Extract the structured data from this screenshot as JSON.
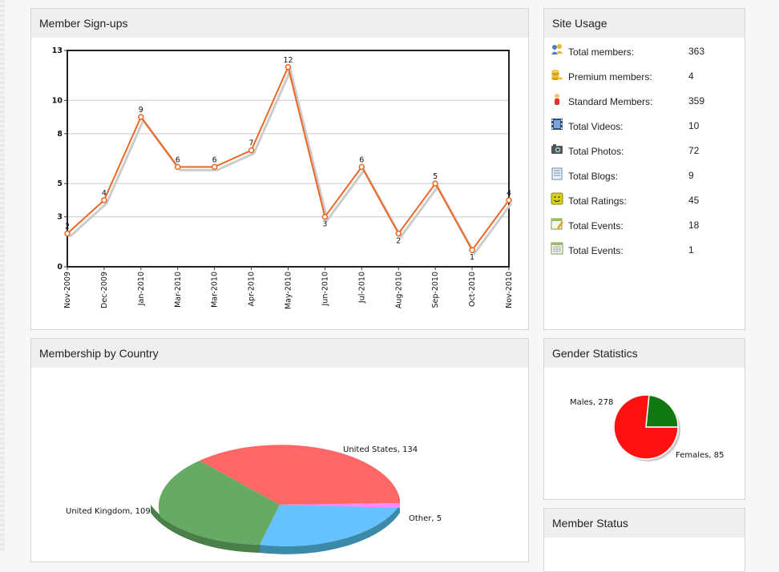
{
  "panels": {
    "signups_title": "Member Sign-ups",
    "usage_title": "Site Usage",
    "country_title": "Membership by Country",
    "gender_title": "Gender Statistics",
    "status_title": "Member Status"
  },
  "site_usage": [
    {
      "label": "Total members:",
      "value": "363",
      "icon": "members-icon"
    },
    {
      "label": "Premium members:",
      "value": "4",
      "icon": "coins-icon"
    },
    {
      "label": "Standard Members:",
      "value": "359",
      "icon": "standard-member-icon"
    },
    {
      "label": "Total Videos:",
      "value": "10",
      "icon": "film-icon"
    },
    {
      "label": "Total Photos:",
      "value": "72",
      "icon": "camera-icon"
    },
    {
      "label": "Total Blogs:",
      "value": "9",
      "icon": "document-icon"
    },
    {
      "label": "Total Ratings:",
      "value": "45",
      "icon": "smiley-icon"
    },
    {
      "label": "Total Events:",
      "value": "18",
      "icon": "edit-calendar-icon"
    },
    {
      "label": "Total Events:",
      "value": "1",
      "icon": "calendar-icon"
    }
  ],
  "chart_data": [
    {
      "type": "line",
      "title": "Member Sign-ups",
      "categories": [
        "Nov-2009",
        "Dec-2009",
        "Jan-2010",
        "Mar-2010",
        "Mar-2010",
        "Apr-2010",
        "May-2010",
        "Jun-2010",
        "Jul-2010",
        "Aug-2010",
        "Sep-2010",
        "Oct-2010",
        "Nov-2010"
      ],
      "values": [
        2,
        4,
        9,
        6,
        6,
        7,
        12,
        3,
        6,
        2,
        5,
        1,
        4
      ],
      "ylim": [
        0,
        13
      ],
      "yticks": [
        "0",
        "3",
        "5",
        "8",
        "10",
        "13"
      ],
      "grid": true,
      "color": "#ee6622"
    },
    {
      "type": "pie",
      "title": "Membership by Country",
      "labels": [
        "United States",
        "United Kingdom",
        "Other"
      ],
      "values": [
        134,
        109,
        5
      ],
      "slice_labels": [
        "United States, 134",
        "United Kingdom, 109",
        "Other, 5"
      ],
      "colors": [
        "#ff6666",
        "#66aa66",
        "#66c2ff",
        "#ff88ff"
      ]
    },
    {
      "type": "pie",
      "title": "Gender Statistics",
      "labels": [
        "Males",
        "Females"
      ],
      "values": [
        278,
        85
      ],
      "slice_labels": [
        "Males, 278",
        "Females, 85"
      ],
      "colors": [
        "#ff1111",
        "#117711"
      ]
    }
  ]
}
